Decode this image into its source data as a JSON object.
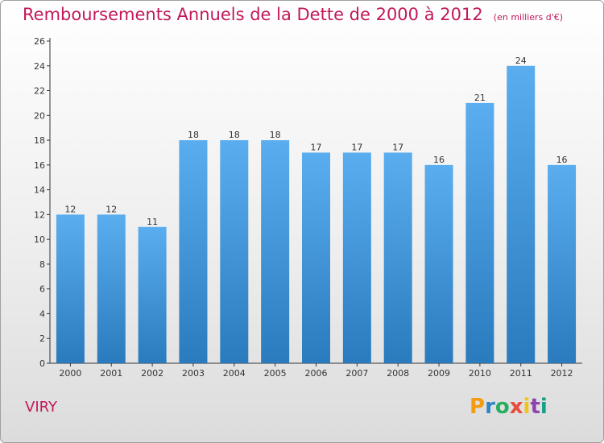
{
  "header": {
    "title": "Remboursements Annuels de la Dette de 2000 à 2012",
    "subtitle": "(en milliers d'€)"
  },
  "footer": {
    "location": "VIRY",
    "logo_text": "Proxiti"
  },
  "colors": {
    "title": "#c2185b",
    "bar_top": "#5aaef0",
    "bar_bottom": "#2a7bbd",
    "axis": "#333333",
    "logo": [
      "#f39c12",
      "#2e86c1",
      "#27ae60",
      "#e74c3c",
      "#f1c40f",
      "#8e44ad",
      "#16a085"
    ]
  },
  "chart_data": {
    "type": "bar",
    "categories": [
      "2000",
      "2001",
      "2002",
      "2003",
      "2004",
      "2005",
      "2006",
      "2007",
      "2008",
      "2009",
      "2010",
      "2011",
      "2012"
    ],
    "values": [
      12,
      12,
      11,
      18,
      18,
      18,
      17,
      17,
      17,
      16,
      21,
      24,
      16
    ],
    "title": "Remboursements Annuels de la Dette de 2000 à 2012",
    "xlabel": "",
    "ylabel": "",
    "ylim": [
      0,
      26
    ],
    "yticks": [
      0,
      2,
      4,
      6,
      8,
      10,
      12,
      14,
      16,
      18,
      20,
      22,
      24,
      26
    ],
    "grid": false,
    "data_labels": true
  }
}
